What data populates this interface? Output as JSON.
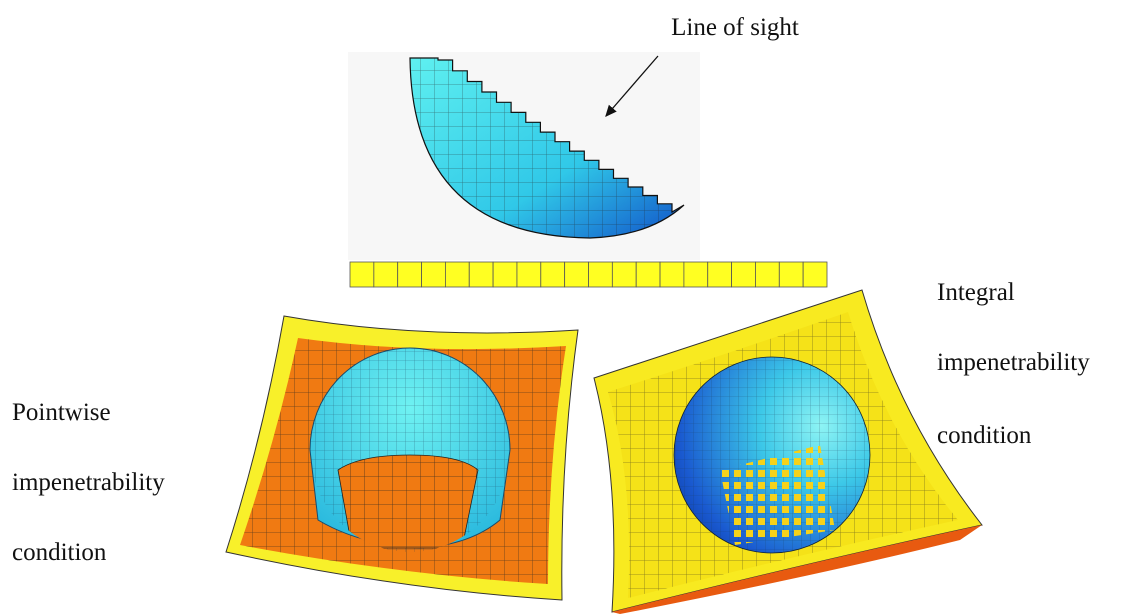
{
  "top_label": "Line of sight",
  "left_caption": [
    "Pointwise",
    "impenetrability",
    "condition"
  ],
  "right_caption": [
    "Integral",
    "impenetrability",
    "condition"
  ]
}
